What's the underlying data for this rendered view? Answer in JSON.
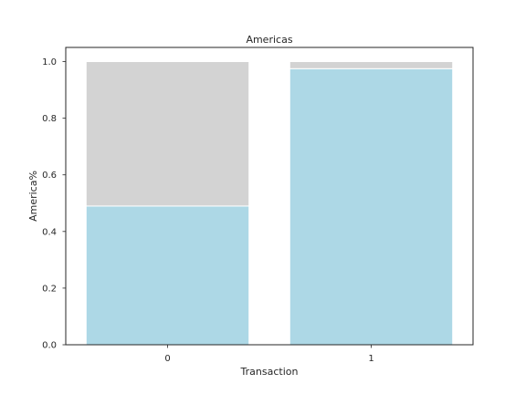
{
  "chart_data": {
    "type": "bar",
    "stacked": true,
    "title": "Americas",
    "xlabel": "Transaction",
    "ylabel": "America%",
    "categories": [
      "0",
      "1"
    ],
    "series": [
      {
        "values": [
          0.49,
          0.975
        ],
        "color": "#add8e6"
      },
      {
        "values": [
          0.51,
          0.025
        ],
        "color": "#d3d3d3"
      }
    ],
    "ylim": [
      0.0,
      1.05
    ],
    "yticks": [
      "0.0",
      "0.2",
      "0.4",
      "0.6",
      "0.8",
      "1.0"
    ],
    "grid": false,
    "legend": "none"
  }
}
